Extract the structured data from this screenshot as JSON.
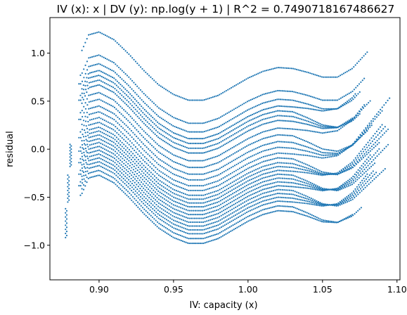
{
  "chart_data": {
    "type": "scatter",
    "title": "IV (x): x | DV (y): np.log(y + 1) | R^2 = 0.7490718167486627",
    "xlabel": "IV: capacity (x)",
    "ylabel": "residual",
    "xlim": [
      0.867,
      1.102
    ],
    "ylim": [
      -1.36,
      1.37
    ],
    "x_ticks": [
      0.9,
      0.95,
      1.0,
      1.05,
      1.1
    ],
    "x_tick_labels": [
      "0.90",
      "0.95",
      "1.00",
      "1.05",
      "1.10"
    ],
    "y_ticks": [
      -1.0,
      -0.5,
      0.0,
      0.5,
      1.0
    ],
    "y_tick_labels": [
      "−1.0",
      "−0.5",
      "0.0",
      "0.5",
      "1.0"
    ],
    "grid": false,
    "legend": "none",
    "marker_color": "#1f77b4",
    "series_template": {
      "x": [
        0.888,
        0.893,
        0.9,
        0.91,
        0.92,
        0.93,
        0.94,
        0.95,
        0.96,
        0.97,
        0.98,
        0.99,
        1.0,
        1.01,
        1.02,
        1.03,
        1.04,
        1.05,
        1.06,
        1.07,
        1.08
      ],
      "y": [
        0.62,
        0.8,
        0.83,
        0.75,
        0.6,
        0.43,
        0.28,
        0.18,
        0.12,
        0.12,
        0.17,
        0.26,
        0.35,
        0.42,
        0.46,
        0.45,
        0.41,
        0.36,
        0.36,
        0.45,
        0.62
      ]
    },
    "curves": [
      {
        "offset": 0.39,
        "x_end": 1.08
      },
      {
        "offset": 0.15,
        "x_end": 1.078
      },
      {
        "offset": 0.06,
        "x_end": 1.075
      },
      {
        "offset": -0.01,
        "x_end": 1.072
      },
      {
        "offset": -0.06,
        "x_end": 1.075
      },
      {
        "offset": -0.11,
        "x_end": 1.082
      },
      {
        "offset": -0.16,
        "x_end": 1.07
      },
      {
        "offset": -0.24,
        "x_end": 1.078
      },
      {
        "offset": -0.31,
        "x_end": 1.08
      },
      {
        "offset": -0.38,
        "x_end": 1.083
      },
      {
        "offset": -0.44,
        "x_end": 1.09
      },
      {
        "offset": -0.5,
        "x_end": 1.095
      },
      {
        "offset": -0.55,
        "x_end": 1.088
      },
      {
        "offset": -0.6,
        "x_end": 1.094
      },
      {
        "offset": -0.64,
        "x_end": 1.092
      },
      {
        "offset": -0.68,
        "x_end": 1.09
      },
      {
        "offset": -0.72,
        "x_end": 1.085
      },
      {
        "offset": -0.76,
        "x_end": 1.094
      },
      {
        "offset": -0.8,
        "x_end": 1.088
      },
      {
        "offset": -0.84,
        "x_end": 1.082
      },
      {
        "offset": -0.88,
        "x_end": 1.092
      },
      {
        "offset": -0.92,
        "x_end": 1.086
      },
      {
        "offset": -0.96,
        "x_end": 1.084
      },
      {
        "offset": -1.0,
        "x_end": 1.08
      },
      {
        "offset": -1.05,
        "x_end": 1.076
      },
      {
        "offset": -1.1,
        "x_end": 1.07
      }
    ],
    "edge_clusters": [
      {
        "x": 0.8775,
        "y_from": -0.92,
        "y_to": -0.62
      },
      {
        "x": 0.879,
        "y_from": -0.55,
        "y_to": -0.27
      },
      {
        "x": 0.8805,
        "y_from": -0.18,
        "y_to": 0.05
      }
    ]
  }
}
